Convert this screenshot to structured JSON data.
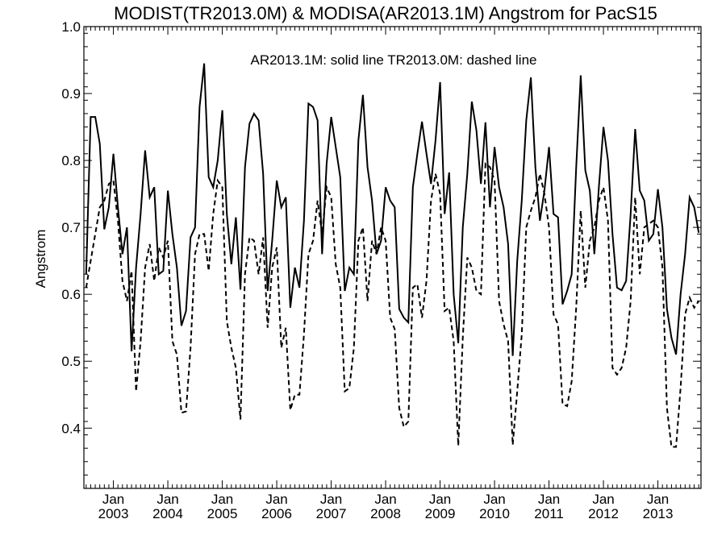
{
  "chart_data": {
    "type": "line",
    "title": "MODIST(TR2013.0M) & MODISA(AR2013.1M)  Angstrom for PacS15",
    "ylabel": "Angstrom",
    "annotation": "AR2013.1M: solid line   TR2013.0M: dashed line",
    "ylim": [
      0.31,
      1.0
    ],
    "yticks": [
      "0.4",
      "0.5",
      "0.6",
      "0.7",
      "0.8",
      "0.9",
      "1.0"
    ],
    "xticks": [
      {
        "month": "Jan",
        "year": "2003"
      },
      {
        "month": "Jan",
        "year": "2004"
      },
      {
        "month": "Jan",
        "year": "2005"
      },
      {
        "month": "Jan",
        "year": "2006"
      },
      {
        "month": "Jan",
        "year": "2007"
      },
      {
        "month": "Jan",
        "year": "2008"
      },
      {
        "month": "Jan",
        "year": "2009"
      },
      {
        "month": "Jan",
        "year": "2010"
      },
      {
        "month": "Jan",
        "year": "2011"
      },
      {
        "month": "Jan",
        "year": "2012"
      },
      {
        "month": "Jan",
        "year": "2013"
      }
    ],
    "x_start": "2002-07",
    "series": [
      {
        "name": "AR2013.1M",
        "style": "solid",
        "color": "#000000",
        "values": [
          0.63,
          0.865,
          0.865,
          0.825,
          0.697,
          0.73,
          0.81,
          0.73,
          0.66,
          0.7,
          0.515,
          0.64,
          0.72,
          0.815,
          0.745,
          0.76,
          0.63,
          0.635,
          0.755,
          0.69,
          0.64,
          0.553,
          0.575,
          0.685,
          0.7,
          0.88,
          0.945,
          0.775,
          0.76,
          0.8,
          0.875,
          0.72,
          0.645,
          0.715,
          0.607,
          0.79,
          0.855,
          0.87,
          0.86,
          0.78,
          0.605,
          0.68,
          0.77,
          0.73,
          0.745,
          0.58,
          0.64,
          0.61,
          0.71,
          0.885,
          0.88,
          0.86,
          0.66,
          0.795,
          0.865,
          0.82,
          0.775,
          0.605,
          0.64,
          0.63,
          0.83,
          0.898,
          0.79,
          0.74,
          0.66,
          0.68,
          0.76,
          0.74,
          0.73,
          0.578,
          0.565,
          0.558,
          0.76,
          0.81,
          0.858,
          0.81,
          0.765,
          0.83,
          0.917,
          0.72,
          0.782,
          0.6,
          0.527,
          0.7,
          0.78,
          0.888,
          0.845,
          0.765,
          0.857,
          0.73,
          0.82,
          0.76,
          0.73,
          0.675,
          0.508,
          0.65,
          0.74,
          0.86,
          0.924,
          0.79,
          0.71,
          0.755,
          0.82,
          0.72,
          0.715,
          0.585,
          0.605,
          0.63,
          0.79,
          0.927,
          0.785,
          0.755,
          0.66,
          0.76,
          0.85,
          0.8,
          0.69,
          0.61,
          0.606,
          0.62,
          0.72,
          0.847,
          0.755,
          0.74,
          0.68,
          0.69,
          0.757,
          0.7,
          0.578,
          0.535,
          0.51,
          0.6,
          0.66,
          0.745,
          0.73,
          0.692
        ]
      },
      {
        "name": "TR2013.0M",
        "style": "dashed",
        "color": "#000000",
        "values": [
          0.61,
          0.65,
          0.69,
          0.73,
          0.74,
          0.765,
          0.77,
          0.71,
          0.62,
          0.59,
          0.635,
          0.455,
          0.53,
          0.64,
          0.675,
          0.62,
          0.67,
          0.655,
          0.68,
          0.53,
          0.51,
          0.423,
          0.425,
          0.52,
          0.66,
          0.69,
          0.69,
          0.635,
          0.72,
          0.77,
          0.76,
          0.56,
          0.52,
          0.49,
          0.413,
          0.63,
          0.685,
          0.68,
          0.63,
          0.685,
          0.55,
          0.64,
          0.67,
          0.52,
          0.55,
          0.427,
          0.45,
          0.45,
          0.54,
          0.66,
          0.68,
          0.74,
          0.69,
          0.76,
          0.745,
          0.645,
          0.61,
          0.455,
          0.46,
          0.52,
          0.68,
          0.7,
          0.59,
          0.68,
          0.66,
          0.7,
          0.68,
          0.565,
          0.548,
          0.43,
          0.402,
          0.41,
          0.61,
          0.615,
          0.565,
          0.62,
          0.74,
          0.78,
          0.75,
          0.575,
          0.58,
          0.53,
          0.374,
          0.535,
          0.655,
          0.64,
          0.605,
          0.6,
          0.795,
          0.79,
          0.77,
          0.59,
          0.555,
          0.53,
          0.375,
          0.455,
          0.54,
          0.7,
          0.725,
          0.745,
          0.78,
          0.75,
          0.7,
          0.57,
          0.555,
          0.436,
          0.433,
          0.47,
          0.58,
          0.725,
          0.61,
          0.68,
          0.7,
          0.74,
          0.76,
          0.71,
          0.49,
          0.48,
          0.49,
          0.52,
          0.59,
          0.745,
          0.63,
          0.7,
          0.705,
          0.71,
          0.7,
          0.64,
          0.43,
          0.372,
          0.372,
          0.46,
          0.57,
          0.595,
          0.58,
          0.59
        ]
      }
    ]
  }
}
